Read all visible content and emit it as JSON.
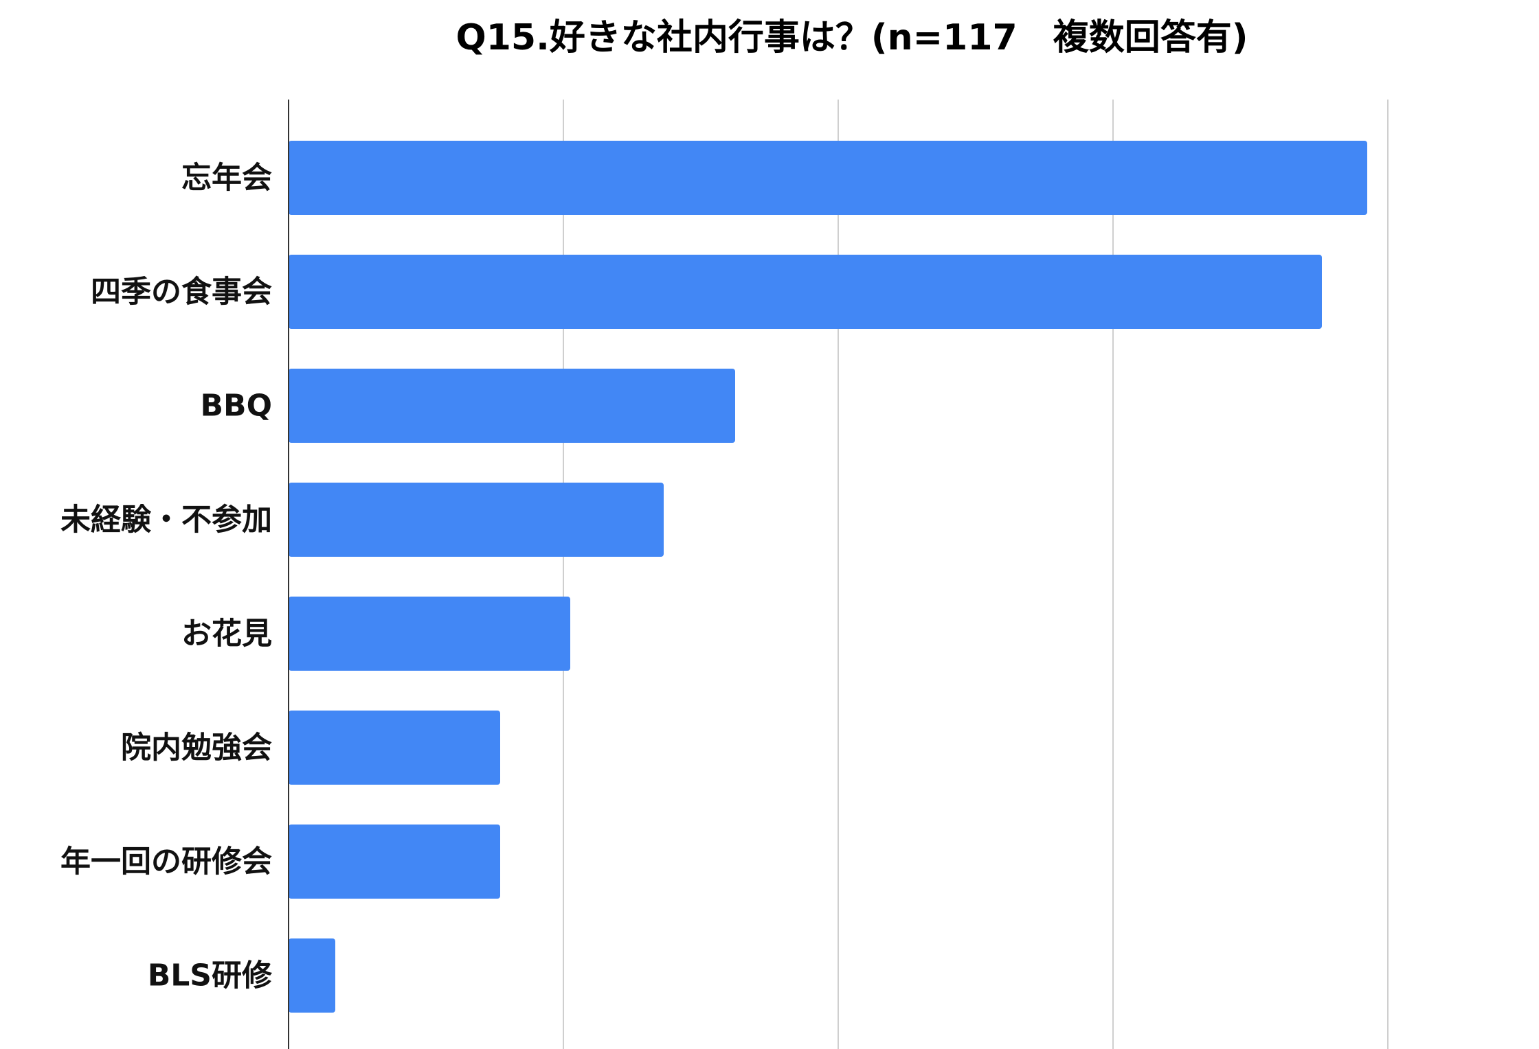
{
  "chart_data": {
    "type": "bar",
    "orientation": "horizontal",
    "title": "Q15.好きな社内行事は？(n=117　複数回答有)",
    "categories": [
      "忘年会",
      "四季の食事会",
      "BBQ",
      "未経験・不参加",
      "お花見",
      "院内勉強会",
      "年一回の研修会",
      "BLS研修"
    ],
    "values": [
      78.5,
      75.2,
      32.5,
      27.3,
      20.5,
      15.4,
      15.4,
      3.4
    ],
    "xlim": [
      0,
      80
    ],
    "grid": true,
    "gridlines": [
      0,
      20,
      40,
      60,
      80
    ],
    "show_tick_labels": false,
    "bar_color": "#4287f5",
    "grid_color": "#cfcfcf",
    "axis_color": "#333333"
  }
}
